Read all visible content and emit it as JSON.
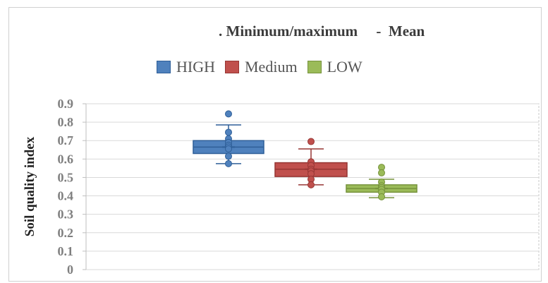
{
  "chart_data": {
    "type": "box",
    "title_line": ". Minimum/maximum     -  Mean",
    "ylabel": "Soil quality index",
    "ylim": [
      0,
      0.9
    ],
    "yticks": [
      "0",
      "0.1",
      "0.2",
      "0.3",
      "0.4",
      "0.5",
      "0.6",
      "0.7",
      "0.8",
      "0.9"
    ],
    "grid": true,
    "legend": "top",
    "series": [
      {
        "name": "HIGH",
        "color": "#4f81bd",
        "edge": "#2f5f98",
        "whisker_min": 0.575,
        "q1": 0.63,
        "median": 0.665,
        "q3": 0.7,
        "whisker_max": 0.785,
        "mean": 0.665,
        "points": [
          0.845,
          0.745,
          0.71,
          0.69,
          0.675,
          0.665,
          0.655,
          0.615,
          0.575
        ]
      },
      {
        "name": "Medium",
        "color": "#c0504d",
        "edge": "#963634",
        "whisker_min": 0.46,
        "q1": 0.505,
        "median": 0.545,
        "q3": 0.58,
        "whisker_max": 0.655,
        "mean": 0.545,
        "points": [
          0.695,
          0.585,
          0.565,
          0.545,
          0.535,
          0.52,
          0.49,
          0.46
        ]
      },
      {
        "name": "LOW",
        "color": "#9bbb59",
        "edge": "#76923c",
        "whisker_min": 0.39,
        "q1": 0.42,
        "median": 0.44,
        "q3": 0.46,
        "whisker_max": 0.49,
        "mean": 0.44,
        "points": [
          0.555,
          0.525,
          0.475,
          0.455,
          0.445,
          0.435,
          0.42,
          0.395
        ]
      }
    ]
  }
}
